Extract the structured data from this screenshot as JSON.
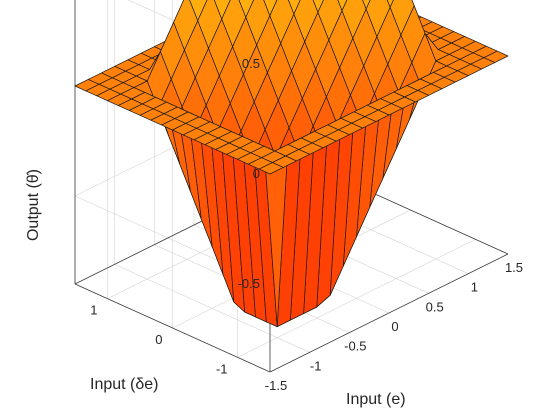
{
  "chart_data": {
    "type": "surface",
    "title": "",
    "xlabel": "Input (e)",
    "ylabel": "Input (δe)",
    "zlabel": "Output (θ̇)",
    "xlim": [
      -1.5,
      1.5
    ],
    "ylim": [
      -1.5,
      1.5
    ],
    "zlim": [
      -0.9,
      0.9
    ],
    "xticks": [
      "-1.5",
      "-1",
      "-0.5",
      "0",
      "0.5",
      "1",
      "1.5"
    ],
    "yticks": [
      "-1",
      "0",
      "1"
    ],
    "zticks": [
      "-0.5",
      "0",
      "0.5"
    ],
    "grid": true,
    "colormap": "autumn",
    "x": [
      -1.5,
      -1.3333,
      -1.1667,
      -1.0,
      -0.8333,
      -0.6667,
      -0.5,
      -0.3333,
      -0.1667,
      0.0,
      0.1667,
      0.3333,
      0.5,
      0.6667,
      0.8333,
      1.0,
      1.1667,
      1.3333,
      1.5
    ],
    "y": [
      -1.5,
      -1.3333,
      -1.1667,
      -1.0,
      -0.8333,
      -0.6667,
      -0.5,
      -0.3333,
      -0.1667,
      0.0,
      0.1667,
      0.3333,
      0.5,
      0.6667,
      0.8333,
      1.0,
      1.1667,
      1.3333,
      1.5
    ],
    "z_rule": "clamp(0.62*(e+de), -0.85, 0.85); 0 where |e|>1.15 or |de|>1.15",
    "z_range": [
      -0.85,
      0.85
    ]
  }
}
